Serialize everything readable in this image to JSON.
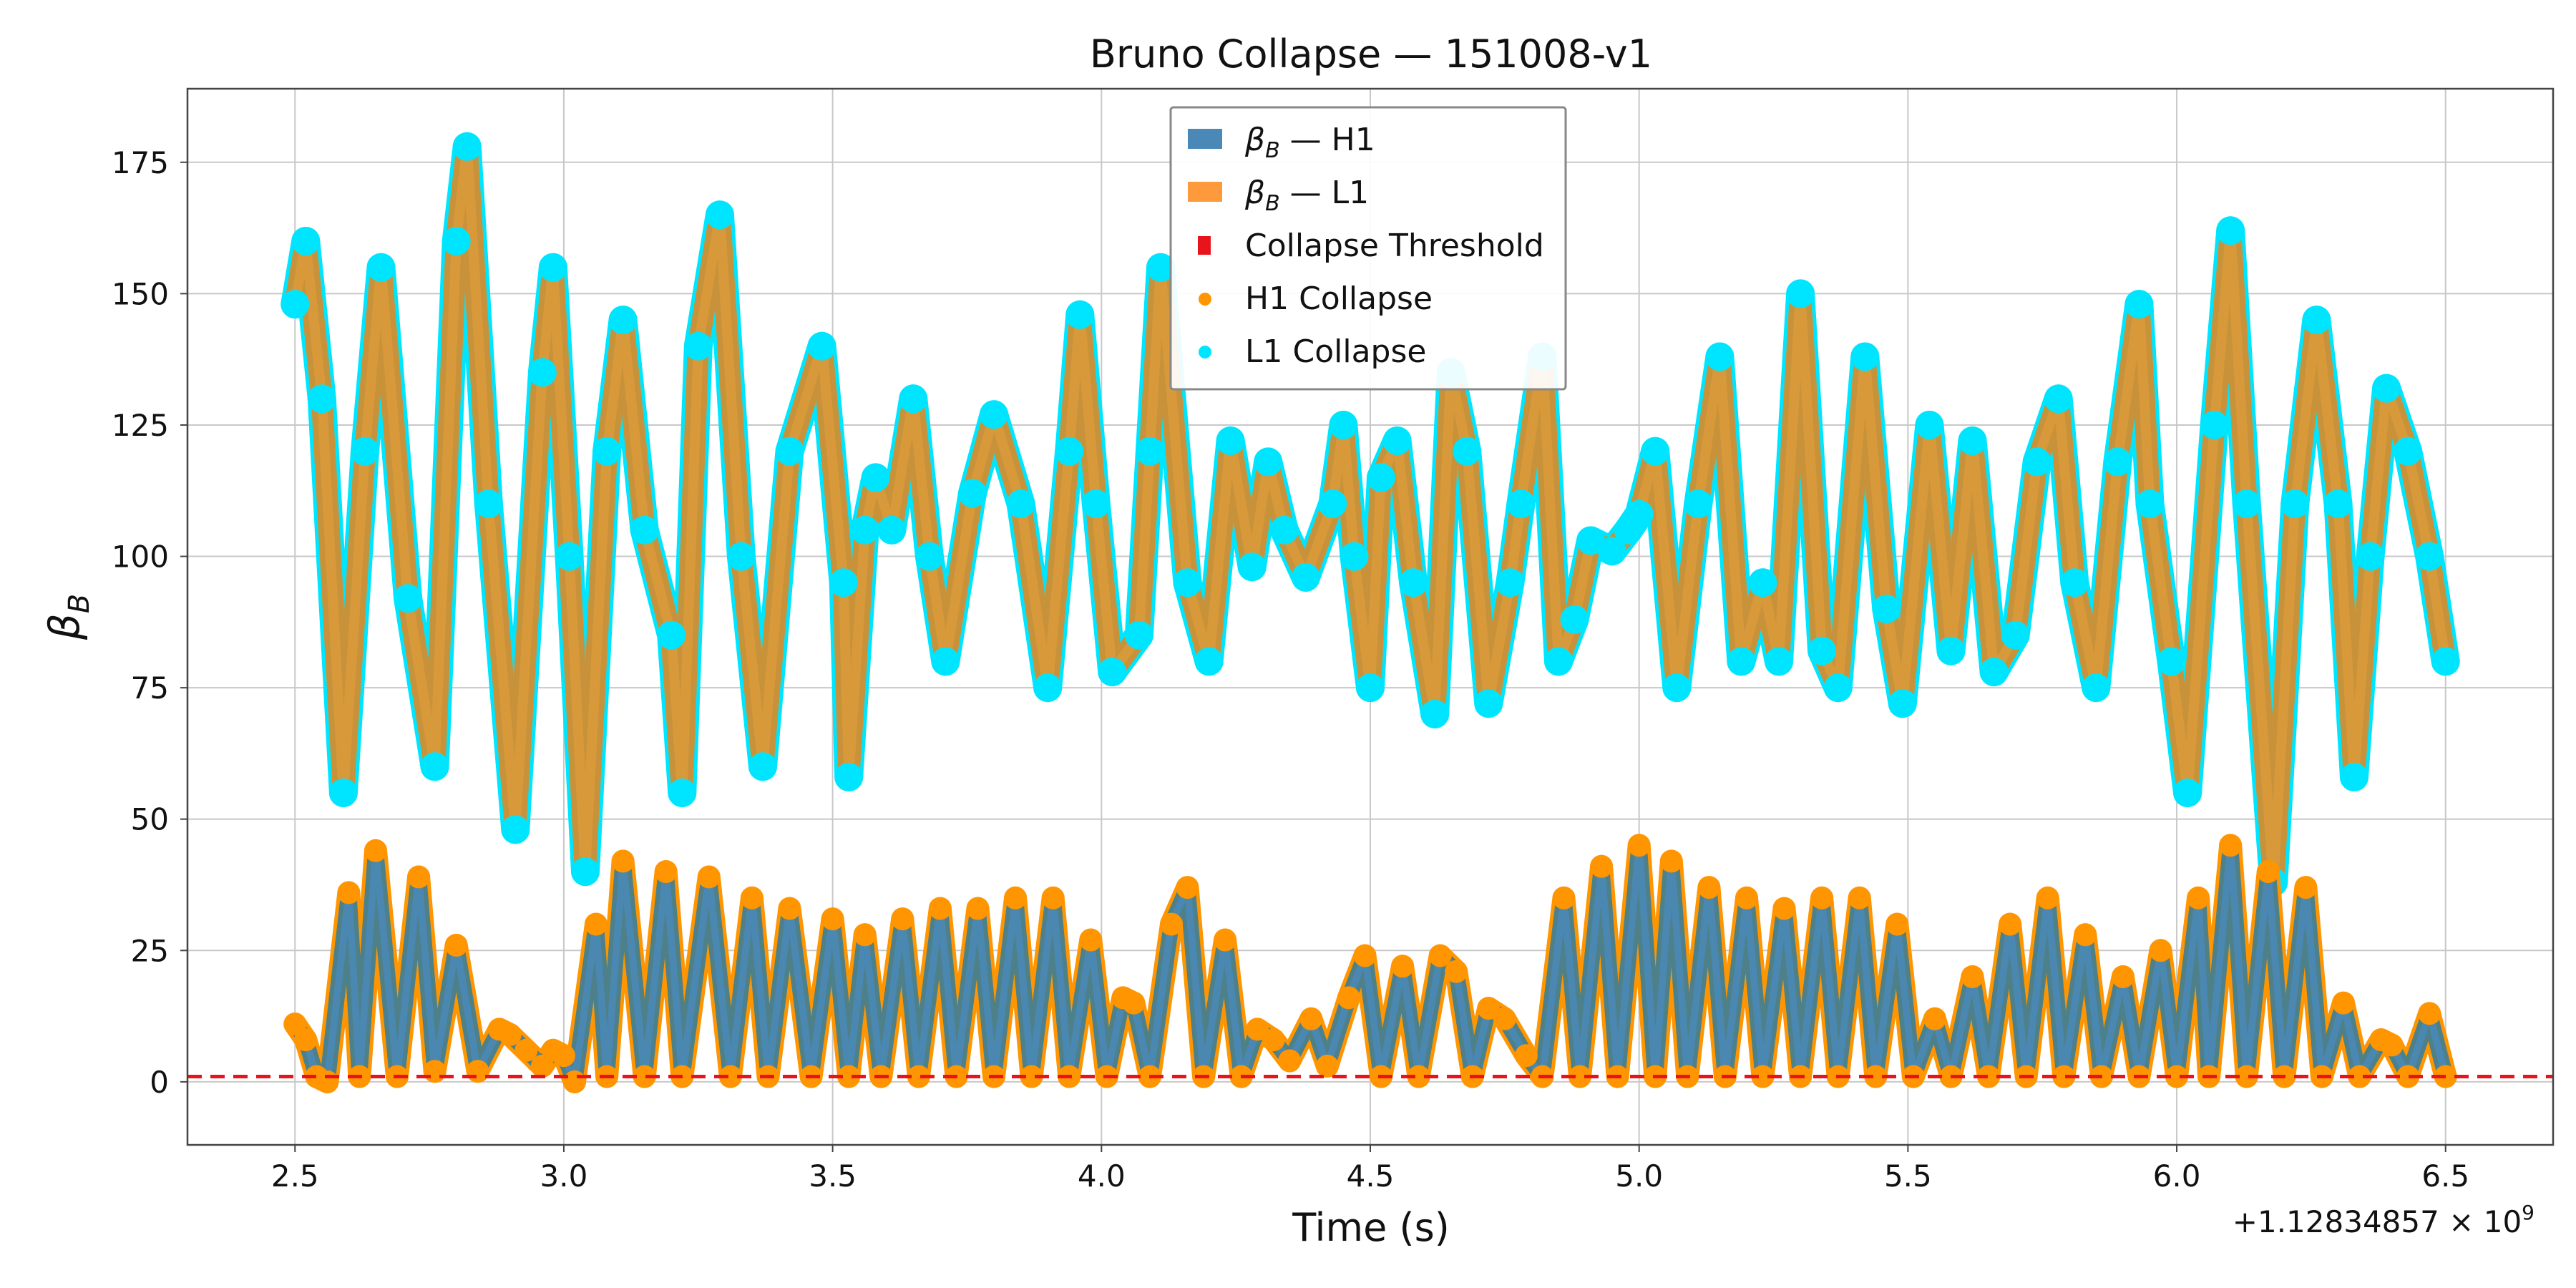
{
  "chart_data": {
    "type": "line",
    "title": "Bruno Collapse — 151008-v1",
    "xlabel": "Time (s)",
    "ylabel": "β_B",
    "ylabel_main": "β",
    "ylabel_sub": "B",
    "x_offset_text": "+1.12834857 × 10",
    "x_offset_exp": "9",
    "xlim": [
      2.3,
      6.7
    ],
    "ylim": [
      -12,
      189
    ],
    "xticks": [
      2.5,
      3.0,
      3.5,
      4.0,
      4.5,
      5.0,
      5.5,
      6.0,
      6.5
    ],
    "xtick_labels": [
      "2.5",
      "3.0",
      "3.5",
      "4.0",
      "4.5",
      "5.0",
      "5.5",
      "6.0",
      "6.5"
    ],
    "yticks": [
      0,
      25,
      50,
      75,
      100,
      125,
      150,
      175
    ],
    "ytick_labels": [
      "0",
      "25",
      "50",
      "75",
      "100",
      "125",
      "150",
      "175"
    ],
    "grid": true,
    "legend_placement": "top-center",
    "threshold": 1.0,
    "colors": {
      "h1": "#4a88b8",
      "l1": "#ff9a3c",
      "threshold": "#e8141b",
      "h1_collapse": "#ff9500",
      "l1_collapse": "#00e5ff",
      "upper_fill": "#c8923a",
      "lower_fill": "#4d8088"
    },
    "legend": [
      {
        "label": "β_B — H1",
        "main": "β",
        "sub": "B",
        "rest": " — H1",
        "kind": "patch",
        "color": "#4a88b8"
      },
      {
        "label": "β_B — L1",
        "main": "β",
        "sub": "B",
        "rest": " — L1",
        "kind": "patch",
        "color": "#ff9a3c"
      },
      {
        "label": "Collapse Threshold",
        "main": "Collapse Threshold",
        "sub": "",
        "rest": "",
        "kind": "square",
        "color": "#e8141b"
      },
      {
        "label": "H1 Collapse",
        "main": "H1 Collapse",
        "sub": "",
        "rest": "",
        "kind": "dot",
        "color": "#ff9500"
      },
      {
        "label": "L1 Collapse",
        "main": "L1 Collapse",
        "sub": "",
        "rest": "",
        "kind": "dot",
        "color": "#00e5ff"
      }
    ],
    "series": [
      {
        "name": "β_B — H1",
        "band": "upper",
        "points": [
          [
            2.5,
            148
          ],
          [
            2.52,
            160
          ],
          [
            2.55,
            130
          ],
          [
            2.59,
            55
          ],
          [
            2.63,
            120
          ],
          [
            2.66,
            155
          ],
          [
            2.71,
            92
          ],
          [
            2.76,
            60
          ],
          [
            2.8,
            160
          ],
          [
            2.82,
            178
          ],
          [
            2.86,
            110
          ],
          [
            2.91,
            48
          ],
          [
            2.96,
            135
          ],
          [
            2.98,
            155
          ],
          [
            3.01,
            100
          ],
          [
            3.04,
            40
          ],
          [
            3.08,
            120
          ],
          [
            3.11,
            145
          ],
          [
            3.15,
            105
          ],
          [
            3.2,
            85
          ],
          [
            3.22,
            55
          ],
          [
            3.25,
            140
          ],
          [
            3.29,
            165
          ],
          [
            3.33,
            100
          ],
          [
            3.37,
            60
          ],
          [
            3.42,
            120
          ],
          [
            3.48,
            140
          ],
          [
            3.52,
            95
          ],
          [
            3.53,
            58
          ],
          [
            3.56,
            105
          ],
          [
            3.58,
            115
          ],
          [
            3.61,
            105
          ],
          [
            3.65,
            130
          ],
          [
            3.68,
            100
          ],
          [
            3.71,
            80
          ],
          [
            3.76,
            112
          ],
          [
            3.8,
            127
          ],
          [
            3.85,
            110
          ],
          [
            3.9,
            75
          ],
          [
            3.94,
            120
          ],
          [
            3.96,
            146
          ],
          [
            3.99,
            110
          ],
          [
            4.02,
            78
          ],
          [
            4.07,
            85
          ],
          [
            4.09,
            120
          ],
          [
            4.11,
            155
          ],
          [
            4.16,
            95
          ],
          [
            4.2,
            80
          ],
          [
            4.24,
            122
          ],
          [
            4.28,
            98
          ],
          [
            4.31,
            118
          ],
          [
            4.34,
            105
          ],
          [
            4.38,
            96
          ],
          [
            4.43,
            110
          ],
          [
            4.45,
            125
          ],
          [
            4.47,
            100
          ],
          [
            4.5,
            75
          ],
          [
            4.52,
            115
          ],
          [
            4.55,
            122
          ],
          [
            4.58,
            95
          ],
          [
            4.62,
            70
          ],
          [
            4.65,
            135
          ],
          [
            4.68,
            120
          ],
          [
            4.72,
            72
          ],
          [
            4.76,
            95
          ],
          [
            4.78,
            110
          ],
          [
            4.82,
            138
          ],
          [
            4.85,
            80
          ],
          [
            4.88,
            88
          ],
          [
            4.91,
            103
          ],
          [
            4.95,
            101
          ],
          [
            4.98,
            105
          ],
          [
            5.0,
            108
          ],
          [
            5.03,
            120
          ],
          [
            5.07,
            75
          ],
          [
            5.11,
            110
          ],
          [
            5.15,
            138
          ],
          [
            5.19,
            80
          ],
          [
            5.23,
            95
          ],
          [
            5.26,
            80
          ],
          [
            5.3,
            150
          ],
          [
            5.34,
            82
          ],
          [
            5.37,
            75
          ],
          [
            5.42,
            138
          ],
          [
            5.46,
            90
          ],
          [
            5.49,
            72
          ],
          [
            5.54,
            125
          ],
          [
            5.58,
            82
          ],
          [
            5.62,
            122
          ],
          [
            5.66,
            78
          ],
          [
            5.7,
            85
          ],
          [
            5.74,
            118
          ],
          [
            5.78,
            130
          ],
          [
            5.81,
            95
          ],
          [
            5.85,
            75
          ],
          [
            5.89,
            118
          ],
          [
            5.93,
            148
          ],
          [
            5.95,
            110
          ],
          [
            5.99,
            80
          ],
          [
            6.02,
            55
          ],
          [
            6.07,
            125
          ],
          [
            6.1,
            162
          ],
          [
            6.13,
            110
          ],
          [
            6.18,
            38
          ],
          [
            6.22,
            110
          ],
          [
            6.26,
            145
          ],
          [
            6.3,
            110
          ],
          [
            6.33,
            58
          ],
          [
            6.36,
            100
          ],
          [
            6.39,
            132
          ],
          [
            6.43,
            120
          ],
          [
            6.47,
            100
          ],
          [
            6.5,
            80
          ]
        ]
      },
      {
        "name": "β_B — L1",
        "band": "lower",
        "points": [
          [
            2.5,
            11
          ],
          [
            2.52,
            8
          ],
          [
            2.54,
            1
          ],
          [
            2.56,
            0
          ],
          [
            2.6,
            36
          ],
          [
            2.62,
            1
          ],
          [
            2.65,
            44
          ],
          [
            2.69,
            1
          ],
          [
            2.73,
            39
          ],
          [
            2.76,
            2
          ],
          [
            2.8,
            26
          ],
          [
            2.84,
            2
          ],
          [
            2.88,
            10
          ],
          [
            2.9,
            9
          ],
          [
            2.93,
            6
          ],
          [
            2.96,
            3
          ],
          [
            2.98,
            6
          ],
          [
            3.0,
            5
          ],
          [
            3.02,
            0
          ],
          [
            3.06,
            30
          ],
          [
            3.08,
            1
          ],
          [
            3.11,
            42
          ],
          [
            3.15,
            1
          ],
          [
            3.19,
            40
          ],
          [
            3.22,
            1
          ],
          [
            3.27,
            39
          ],
          [
            3.31,
            1
          ],
          [
            3.35,
            35
          ],
          [
            3.38,
            1
          ],
          [
            3.42,
            33
          ],
          [
            3.46,
            1
          ],
          [
            3.5,
            31
          ],
          [
            3.53,
            1
          ],
          [
            3.56,
            28
          ],
          [
            3.59,
            1
          ],
          [
            3.63,
            31
          ],
          [
            3.66,
            1
          ],
          [
            3.7,
            33
          ],
          [
            3.73,
            1
          ],
          [
            3.77,
            33
          ],
          [
            3.8,
            1
          ],
          [
            3.84,
            35
          ],
          [
            3.87,
            1
          ],
          [
            3.91,
            35
          ],
          [
            3.94,
            1
          ],
          [
            3.98,
            27
          ],
          [
            4.01,
            1
          ],
          [
            4.04,
            16
          ],
          [
            4.06,
            15
          ],
          [
            4.09,
            1
          ],
          [
            4.13,
            30
          ],
          [
            4.16,
            37
          ],
          [
            4.19,
            1
          ],
          [
            4.23,
            27
          ],
          [
            4.26,
            1
          ],
          [
            4.29,
            10
          ],
          [
            4.32,
            8
          ],
          [
            4.35,
            4
          ],
          [
            4.39,
            12
          ],
          [
            4.42,
            3
          ],
          [
            4.46,
            16
          ],
          [
            4.49,
            24
          ],
          [
            4.52,
            1
          ],
          [
            4.56,
            22
          ],
          [
            4.59,
            1
          ],
          [
            4.63,
            24
          ],
          [
            4.66,
            21
          ],
          [
            4.69,
            1
          ],
          [
            4.72,
            14
          ],
          [
            4.75,
            12
          ],
          [
            4.79,
            5
          ],
          [
            4.82,
            1
          ],
          [
            4.86,
            35
          ],
          [
            4.89,
            1
          ],
          [
            4.93,
            41
          ],
          [
            4.96,
            1
          ],
          [
            5.0,
            45
          ],
          [
            5.03,
            1
          ],
          [
            5.06,
            42
          ],
          [
            5.09,
            1
          ],
          [
            5.13,
            37
          ],
          [
            5.16,
            1
          ],
          [
            5.2,
            35
          ],
          [
            5.23,
            1
          ],
          [
            5.27,
            33
          ],
          [
            5.3,
            1
          ],
          [
            5.34,
            35
          ],
          [
            5.37,
            1
          ],
          [
            5.41,
            35
          ],
          [
            5.44,
            1
          ],
          [
            5.48,
            30
          ],
          [
            5.51,
            1
          ],
          [
            5.55,
            12
          ],
          [
            5.58,
            1
          ],
          [
            5.62,
            20
          ],
          [
            5.65,
            1
          ],
          [
            5.69,
            30
          ],
          [
            5.72,
            1
          ],
          [
            5.76,
            35
          ],
          [
            5.79,
            1
          ],
          [
            5.83,
            28
          ],
          [
            5.86,
            1
          ],
          [
            5.9,
            20
          ],
          [
            5.93,
            1
          ],
          [
            5.97,
            25
          ],
          [
            6.0,
            1
          ],
          [
            6.04,
            35
          ],
          [
            6.06,
            1
          ],
          [
            6.1,
            45
          ],
          [
            6.13,
            1
          ],
          [
            6.17,
            40
          ],
          [
            6.2,
            1
          ],
          [
            6.24,
            37
          ],
          [
            6.27,
            1
          ],
          [
            6.31,
            15
          ],
          [
            6.34,
            1
          ],
          [
            6.38,
            8
          ],
          [
            6.4,
            7
          ],
          [
            6.43,
            1
          ],
          [
            6.47,
            13
          ],
          [
            6.5,
            1
          ]
        ]
      },
      {
        "name": "Collapse Threshold",
        "type": "hline",
        "y": 1.0
      }
    ]
  }
}
